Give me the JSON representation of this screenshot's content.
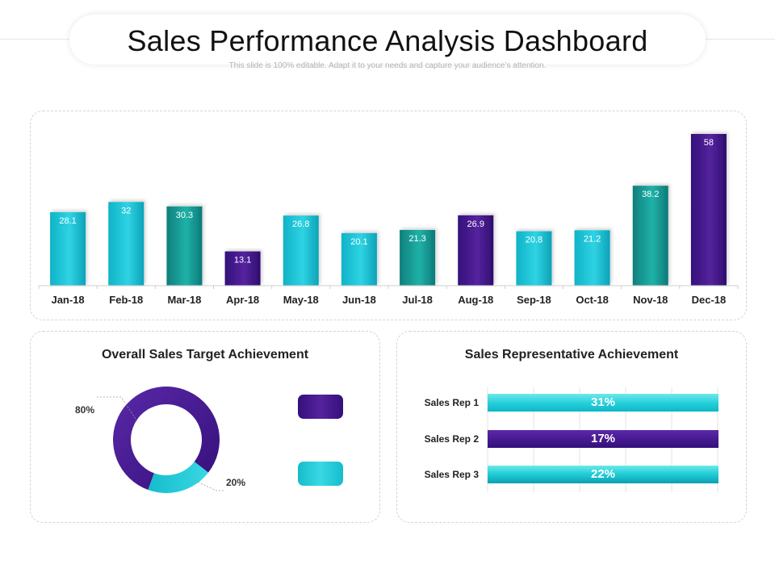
{
  "header": {
    "title": "Sales Performance Analysis Dashboard",
    "subtitle": "This slide is 100% editable. Adapt it to your needs and capture your audience’s attention."
  },
  "colors": {
    "cyan": "#1cc4d6",
    "teal": "#13938f",
    "purple": "#44188c"
  },
  "chart_data": [
    {
      "type": "bar",
      "title": "",
      "categories": [
        "Jan-18",
        "Feb-18",
        "Mar-18",
        "Apr-18",
        "May-18",
        "Jun-18",
        "Jul-18",
        "Aug-18",
        "Sep-18",
        "Oct-18",
        "Nov-18",
        "Dec-18"
      ],
      "values": [
        28.1,
        32,
        30.3,
        13.1,
        26.8,
        20.1,
        21.3,
        26.9,
        20.8,
        21.2,
        38.2,
        58
      ],
      "value_labels": [
        "28.1",
        "32",
        "30.3",
        "13.1",
        "26.8",
        "20.1",
        "21.3",
        "26.9",
        "20.8",
        "21.2",
        "38.2",
        "58"
      ],
      "bar_colors": [
        "cyan",
        "cyan",
        "teal",
        "purple",
        "cyan",
        "cyan",
        "teal",
        "purple",
        "cyan",
        "cyan",
        "teal",
        "purple"
      ],
      "ylim": [
        0,
        58
      ],
      "grid": false
    },
    {
      "type": "pie",
      "title": "Overall Sales Target Achievement",
      "style": "donut",
      "slices": [
        {
          "label": "80%",
          "value": 80,
          "color": "purple"
        },
        {
          "label": "20%",
          "value": 20,
          "color": "cyan"
        }
      ]
    },
    {
      "type": "bar",
      "orientation": "horizontal",
      "title": "Sales Representative Achievement",
      "categories": [
        "Sales  Rep 1",
        "Sales  Rep 2",
        "Sales  Rep 3"
      ],
      "values": [
        31,
        17,
        22
      ],
      "value_labels": [
        "31%",
        "17%",
        "22%"
      ],
      "bar_colors": [
        "cyan",
        "purple",
        "cyan"
      ],
      "grid": true
    }
  ]
}
